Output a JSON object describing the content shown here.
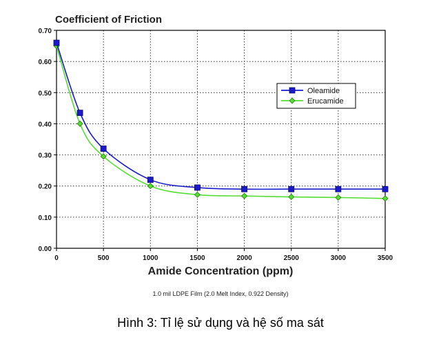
{
  "chart_data": {
    "type": "line",
    "title": "Coefficient of Friction",
    "xlabel": "Amide Concentration (ppm)",
    "ylabel": "",
    "xlim": [
      0,
      3500
    ],
    "ylim": [
      0,
      0.7
    ],
    "x_ticks": [
      "0",
      "500",
      "1000",
      "1500",
      "2000",
      "2500",
      "3000",
      "3500"
    ],
    "y_ticks": [
      "0.00",
      "0.10",
      "0.20",
      "0.30",
      "0.40",
      "0.50",
      "0.60",
      "0.70"
    ],
    "grid": true,
    "legend_position": "right",
    "series": [
      {
        "name": "Oleamide",
        "color": "#1a1acc",
        "marker": "square",
        "x": [
          0,
          250,
          500,
          1000,
          1500,
          2000,
          2500,
          3000,
          3500
        ],
        "values": [
          0.66,
          0.435,
          0.32,
          0.22,
          0.195,
          0.19,
          0.19,
          0.19,
          0.19
        ]
      },
      {
        "name": "Erucamide",
        "color": "#55dd33",
        "marker": "diamond",
        "x": [
          0,
          250,
          500,
          1000,
          1500,
          2000,
          2500,
          3000,
          3500
        ],
        "values": [
          0.65,
          0.4,
          0.295,
          0.2,
          0.172,
          0.168,
          0.165,
          0.163,
          0.16
        ]
      }
    ]
  },
  "footnote": "1.0 mil LDPE Film (2.0 Melt Index, 0.922 Density)",
  "caption": "Hình 3: Tỉ lệ sử dụng và hệ số ma sát"
}
